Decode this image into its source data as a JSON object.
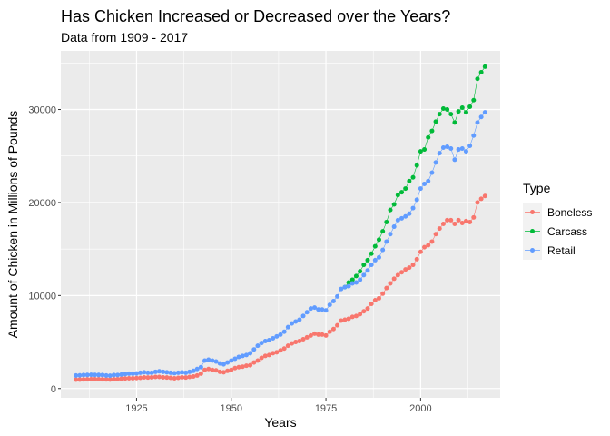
{
  "chart_data": {
    "type": "line",
    "title": "Has Chicken Increased or Decreased over the Years?",
    "subtitle": "Data from 1909 - 2017",
    "xlabel": "Years",
    "ylabel": "Amount of Chicken in Millions of Pounds",
    "xlim": [
      1905,
      2021
    ],
    "ylim": [
      -1000,
      36300
    ],
    "x_ticks": [
      1925,
      1950,
      1975,
      2000
    ],
    "y_ticks": [
      0,
      10000,
      20000,
      30000
    ],
    "grid": true,
    "legend_title": "Type",
    "legend_position": "right",
    "series": [
      {
        "name": "Boneless",
        "color": "#F8766D",
        "x": [
          1909,
          1910,
          1911,
          1912,
          1913,
          1914,
          1915,
          1916,
          1917,
          1918,
          1919,
          1920,
          1921,
          1922,
          1923,
          1924,
          1925,
          1926,
          1927,
          1928,
          1929,
          1930,
          1931,
          1932,
          1933,
          1934,
          1935,
          1936,
          1937,
          1938,
          1939,
          1940,
          1941,
          1942,
          1943,
          1944,
          1945,
          1946,
          1947,
          1948,
          1949,
          1950,
          1951,
          1952,
          1953,
          1954,
          1955,
          1956,
          1957,
          1958,
          1959,
          1960,
          1961,
          1962,
          1963,
          1964,
          1965,
          1966,
          1967,
          1968,
          1969,
          1970,
          1971,
          1972,
          1973,
          1974,
          1975,
          1976,
          1977,
          1978,
          1979,
          1980,
          1981,
          1982,
          1983,
          1984,
          1985,
          1986,
          1987,
          1988,
          1989,
          1990,
          1991,
          1992,
          1993,
          1994,
          1995,
          1996,
          1997,
          1998,
          1999,
          2000,
          2001,
          2002,
          2003,
          2004,
          2005,
          2006,
          2007,
          2008,
          2009,
          2010,
          2011,
          2012,
          2013,
          2014,
          2015,
          2016,
          2017
        ],
        "y": [
          950,
          960,
          980,
          990,
          1000,
          1000,
          1000,
          990,
          980,
          970,
          1000,
          1000,
          1050,
          1080,
          1100,
          1100,
          1120,
          1150,
          1200,
          1180,
          1200,
          1250,
          1250,
          1200,
          1180,
          1150,
          1100,
          1150,
          1200,
          1180,
          1250,
          1300,
          1400,
          1600,
          2000,
          2100,
          2000,
          1950,
          1800,
          1750,
          1900,
          2000,
          2200,
          2300,
          2350,
          2450,
          2500,
          2800,
          3000,
          3300,
          3500,
          3600,
          3800,
          3900,
          4100,
          4300,
          4600,
          4850,
          5000,
          5100,
          5300,
          5500,
          5700,
          5900,
          5800,
          5800,
          5700,
          6100,
          6400,
          6800,
          7300,
          7400,
          7500,
          7700,
          7800,
          8000,
          8300,
          8600,
          9100,
          9500,
          9700,
          10200,
          10800,
          11300,
          11800,
          12200,
          12500,
          12800,
          13000,
          13300,
          13900,
          14700,
          15200,
          15400,
          15800,
          16600,
          17200,
          17700,
          18100,
          18100,
          17700,
          18100,
          17800,
          18000,
          17900,
          18400,
          20000,
          20400,
          20700
        ]
      },
      {
        "name": "Carcass",
        "color": "#00BA38",
        "x": [
          1980,
          1981,
          1982,
          1983,
          1984,
          1985,
          1986,
          1987,
          1988,
          1989,
          1990,
          1991,
          1992,
          1993,
          1994,
          1995,
          1996,
          1997,
          1998,
          1999,
          2000,
          2001,
          2002,
          2003,
          2004,
          2005,
          2006,
          2007,
          2008,
          2009,
          2010,
          2011,
          2012,
          2013,
          2014,
          2015,
          2016,
          2017
        ],
        "y": [
          10900,
          11400,
          11700,
          12100,
          12600,
          13300,
          13800,
          14500,
          15300,
          16000,
          16900,
          17900,
          19200,
          19800,
          20800,
          21100,
          21500,
          22300,
          22700,
          24000,
          25500,
          25700,
          27000,
          27700,
          28700,
          29500,
          30100,
          30000,
          29500,
          28600,
          29800,
          30200,
          29700,
          30300,
          31000,
          33300,
          34000,
          34600
        ]
      },
      {
        "name": "Retail",
        "color": "#619CFF",
        "x": [
          1909,
          1910,
          1911,
          1912,
          1913,
          1914,
          1915,
          1916,
          1917,
          1918,
          1919,
          1920,
          1921,
          1922,
          1923,
          1924,
          1925,
          1926,
          1927,
          1928,
          1929,
          1930,
          1931,
          1932,
          1933,
          1934,
          1935,
          1936,
          1937,
          1938,
          1939,
          1940,
          1941,
          1942,
          1943,
          1944,
          1945,
          1946,
          1947,
          1948,
          1949,
          1950,
          1951,
          1952,
          1953,
          1954,
          1955,
          1956,
          1957,
          1958,
          1959,
          1960,
          1961,
          1962,
          1963,
          1964,
          1965,
          1966,
          1967,
          1968,
          1969,
          1970,
          1971,
          1972,
          1973,
          1974,
          1975,
          1976,
          1977,
          1978,
          1979,
          1980,
          1981,
          1982,
          1983,
          1984,
          1985,
          1986,
          1987,
          1988,
          1989,
          1990,
          1991,
          1992,
          1993,
          1994,
          1995,
          1996,
          1997,
          1998,
          1999,
          2000,
          2001,
          2002,
          2003,
          2004,
          2005,
          2006,
          2007,
          2008,
          2009,
          2010,
          2011,
          2012,
          2013,
          2014,
          2015,
          2016,
          2017
        ],
        "y": [
          1400,
          1420,
          1450,
          1460,
          1480,
          1470,
          1460,
          1450,
          1400,
          1380,
          1450,
          1450,
          1500,
          1550,
          1600,
          1600,
          1620,
          1700,
          1750,
          1700,
          1700,
          1800,
          1850,
          1800,
          1750,
          1700,
          1650,
          1700,
          1750,
          1700,
          1800,
          1900,
          2100,
          2300,
          3000,
          3100,
          3000,
          2900,
          2700,
          2600,
          2800,
          3000,
          3200,
          3400,
          3500,
          3600,
          3800,
          4200,
          4600,
          4900,
          5100,
          5200,
          5400,
          5600,
          5800,
          6100,
          6600,
          7000,
          7200,
          7400,
          7800,
          8200,
          8600,
          8700,
          8500,
          8500,
          8400,
          9000,
          9400,
          9900,
          10700,
          10900,
          11000,
          11300,
          11400,
          11700,
          12200,
          12700,
          13300,
          13800,
          14100,
          14900,
          15800,
          16600,
          17400,
          18100,
          18300,
          18500,
          18800,
          19400,
          20300,
          21500,
          22000,
          22300,
          23200,
          24300,
          25300,
          25900,
          26000,
          25800,
          24600,
          25700,
          25800,
          25500,
          26100,
          27200,
          28600,
          29200,
          29700
        ]
      }
    ]
  }
}
